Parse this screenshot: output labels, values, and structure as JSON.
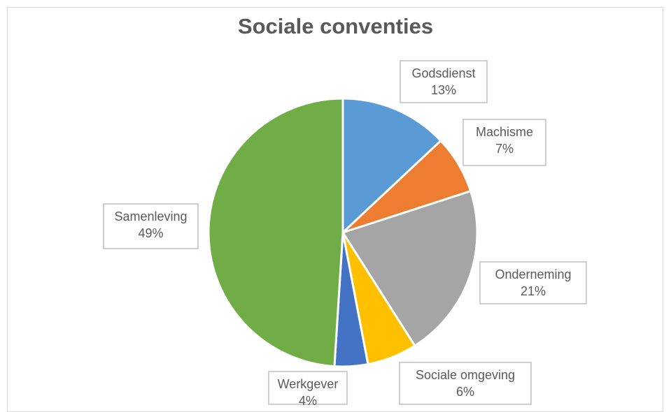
{
  "chart_data": {
    "type": "pie",
    "title": "Sociale conventies",
    "categories": [
      "Godsdienst",
      "Machisme",
      "Onderneming",
      "Sociale omgeving",
      "Werkgever",
      "Samenleving"
    ],
    "values": [
      13,
      7,
      21,
      6,
      4,
      49
    ],
    "value_labels": [
      "13%",
      "7%",
      "21%",
      "6%",
      "4%",
      "49%"
    ],
    "colors": [
      "#5b9bd5",
      "#ed7d31",
      "#a5a5a5",
      "#ffc000",
      "#4472c4",
      "#70ad47"
    ],
    "legend": "none"
  }
}
